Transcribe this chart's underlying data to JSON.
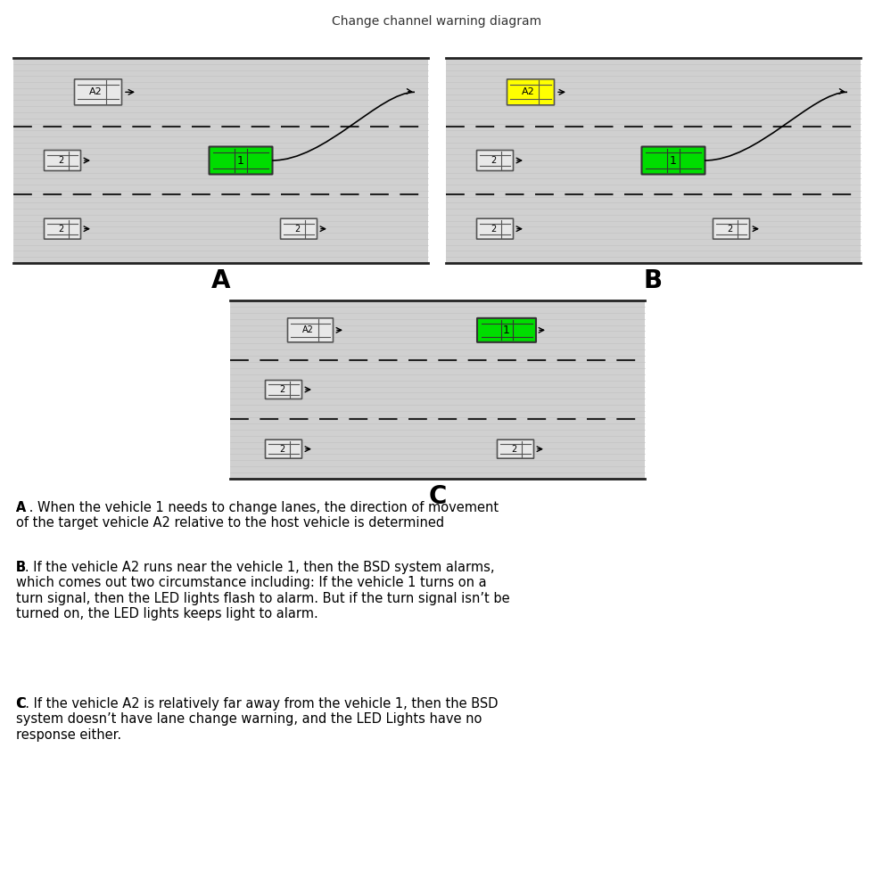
{
  "title": "Change channel warning diagram",
  "title_fontsize": 11,
  "bg_color": "#ffffff",
  "road_bg": "#d4d4d4",
  "road_stripe": "#c8c8c8",
  "lane_line_color": "#333333",
  "solid_line_color": "#333333",
  "car1_color": "#00dd00",
  "car_a2_color_A": "#ffffff",
  "car_a2_color_B": "#ffff00",
  "car_a2_color_C": "#ffffff",
  "car_gray_color": "#e8e8e8",
  "text_A": "A . When the vehicle 1 needs to change lanes, the direction of movement\nof the target vehicle A2 relative to the host vehicle is determined",
  "text_B": "B. If the vehicle A2 runs near the vehicle 1, then the BSD system alarms,\nwhich comes out two circumstance including: If the vehicle 1 turns on a\nturn signal, then the LED lights flash to alarm. But if the turn signal isn’t be\nturned on, the LED lights keeps light to alarm.",
  "text_C": "C. If the vehicle A2 is relatively far away from the vehicle 1, then the BSD\nsystem doesn’t have lane change warning, and the LED Lights have no\nresponse either.",
  "label_A": "A",
  "label_B": "B",
  "label_C": "C"
}
